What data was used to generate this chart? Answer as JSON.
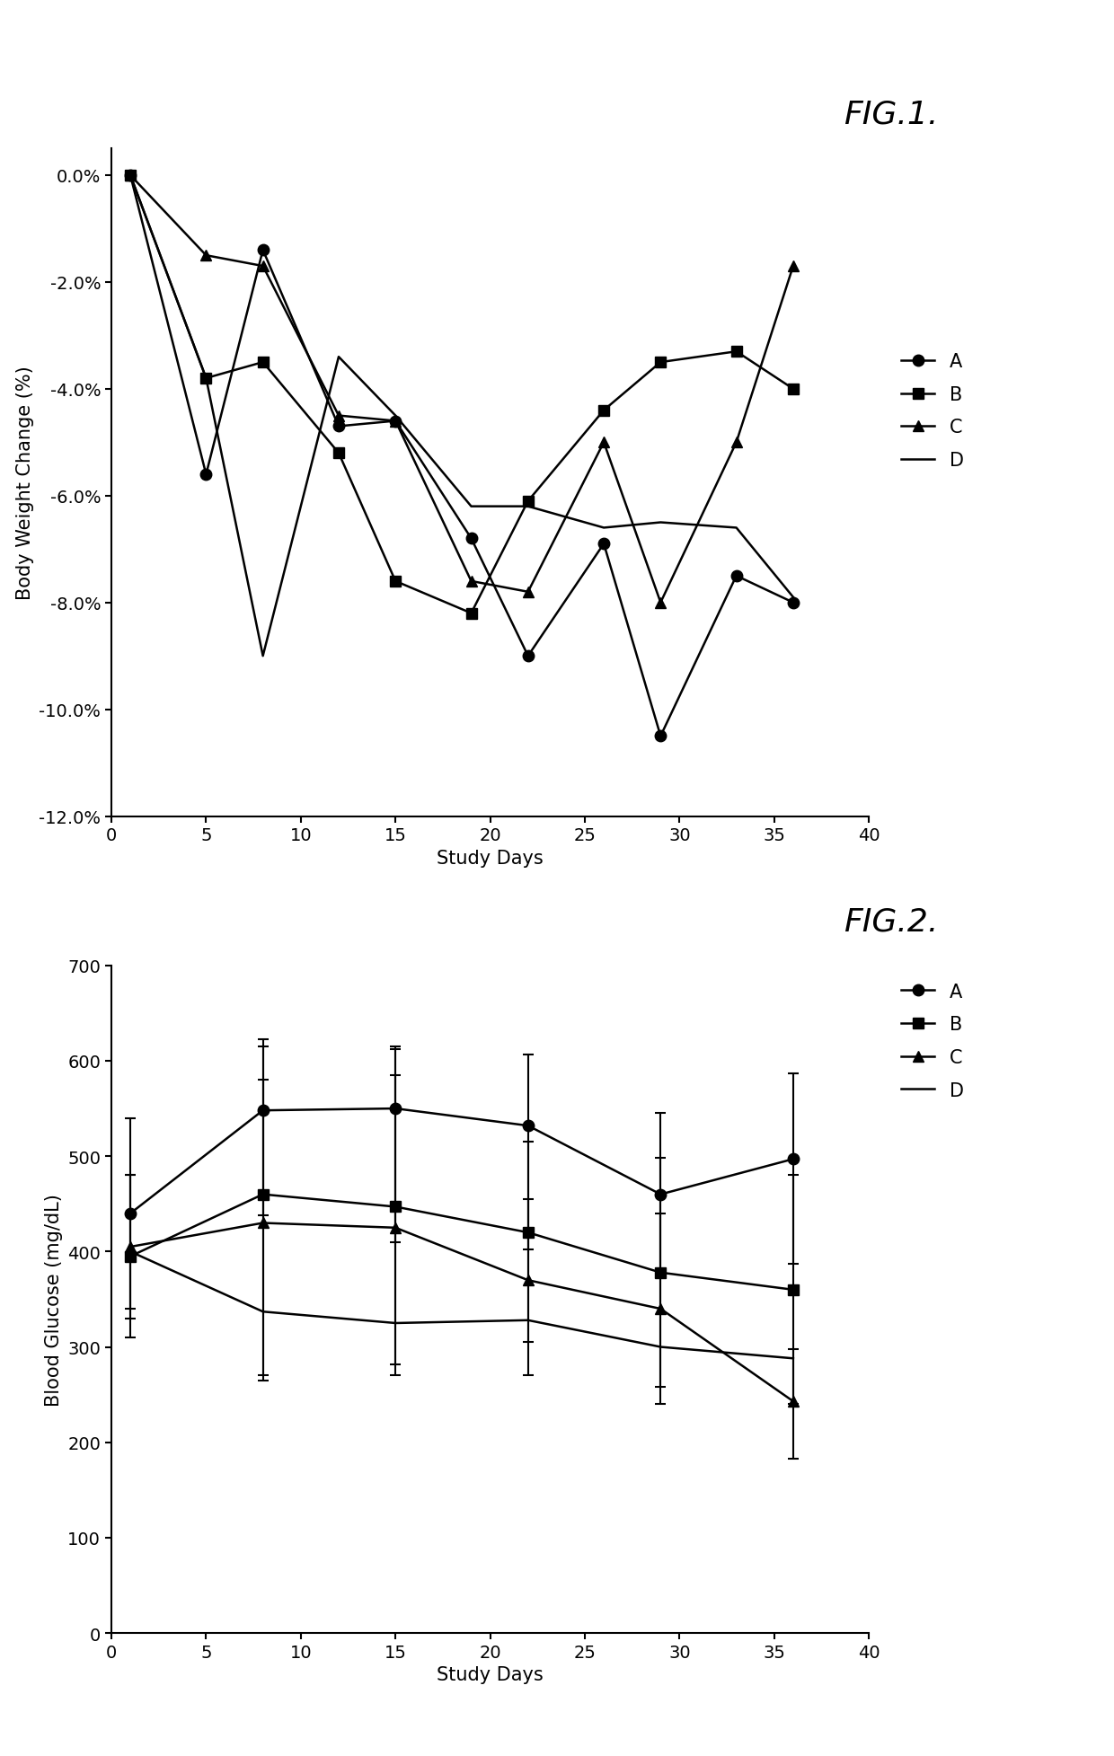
{
  "fig1": {
    "title": "FIG.1.",
    "xlabel": "Study Days",
    "ylabel": "Body Weight Change (%)",
    "xlim": [
      0,
      40
    ],
    "ylim": [
      -0.12,
      0.005
    ],
    "yticks": [
      0.0,
      -0.02,
      -0.04,
      -0.06,
      -0.08,
      -0.1,
      -0.12
    ],
    "xticks": [
      0,
      5,
      10,
      15,
      20,
      25,
      30,
      35,
      40
    ],
    "series": {
      "A": {
        "x": [
          1,
          5,
          8,
          12,
          15,
          19,
          22,
          26,
          29,
          33,
          36
        ],
        "y": [
          0.0,
          -0.056,
          -0.014,
          -0.047,
          -0.046,
          -0.068,
          -0.09,
          -0.069,
          -0.105,
          -0.075,
          -0.08
        ],
        "marker": "o",
        "label": "A"
      },
      "B": {
        "x": [
          1,
          5,
          8,
          12,
          15,
          19,
          22,
          26,
          29,
          33,
          36
        ],
        "y": [
          0.0,
          -0.038,
          -0.035,
          -0.052,
          -0.076,
          -0.082,
          -0.061,
          -0.044,
          -0.035,
          -0.033,
          -0.04
        ],
        "marker": "s",
        "label": "B"
      },
      "C": {
        "x": [
          1,
          5,
          8,
          12,
          15,
          19,
          22,
          26,
          29,
          33,
          36
        ],
        "y": [
          0.0,
          -0.015,
          -0.017,
          -0.045,
          -0.046,
          -0.076,
          -0.078,
          -0.05,
          -0.08,
          -0.05,
          -0.017
        ],
        "marker": "^",
        "label": "C"
      },
      "D": {
        "x": [
          1,
          5,
          8,
          12,
          15,
          19,
          22,
          26,
          29,
          33,
          36
        ],
        "y": [
          0.0,
          -0.038,
          -0.09,
          -0.034,
          -0.045,
          -0.062,
          -0.062,
          -0.066,
          -0.065,
          -0.066,
          -0.079
        ],
        "marker": null,
        "label": "D"
      }
    }
  },
  "fig2": {
    "title": "FIG.2.",
    "xlabel": "Study Days",
    "ylabel": "Blood Glucose (mg/dL)",
    "xlim": [
      0,
      40
    ],
    "ylim": [
      0,
      700
    ],
    "yticks": [
      0,
      100,
      200,
      300,
      400,
      500,
      600,
      700
    ],
    "xticks": [
      0,
      5,
      10,
      15,
      20,
      25,
      30,
      35,
      40
    ],
    "series": {
      "A": {
        "x": [
          1,
          8,
          15,
          22,
          29,
          36
        ],
        "y": [
          440,
          548,
          550,
          532,
          460,
          497
        ],
        "yerr_low": [
          100,
          110,
          140,
          130,
          85,
          110
        ],
        "yerr_high": [
          100,
          75,
          65,
          75,
          85,
          90
        ],
        "marker": "o",
        "label": "A"
      },
      "B": {
        "x": [
          1,
          8,
          15,
          22,
          29,
          36
        ],
        "y": [
          395,
          460,
          447,
          420,
          378,
          360
        ],
        "yerr_low": [
          85,
          190,
          165,
          115,
          120,
          120
        ],
        "yerr_high": [
          85,
          155,
          165,
          95,
          120,
          120
        ],
        "marker": "s",
        "label": "B"
      },
      "C": {
        "x": [
          1,
          8,
          15,
          22,
          29,
          36
        ],
        "y": [
          405,
          430,
          425,
          370,
          340,
          243
        ],
        "yerr_low": [
          75,
          165,
          155,
          100,
          100,
          60
        ],
        "yerr_high": [
          75,
          150,
          160,
          85,
          100,
          55
        ],
        "marker": "^",
        "label": "C"
      },
      "D": {
        "x": [
          1,
          8,
          15,
          22,
          29,
          36
        ],
        "y": [
          400,
          337,
          325,
          328,
          300,
          288
        ],
        "yerr_low": [
          65,
          45,
          35,
          50,
          55,
          45
        ],
        "yerr_high": [
          65,
          45,
          35,
          50,
          55,
          45
        ],
        "marker": null,
        "label": "D"
      }
    }
  },
  "line_color": "#000000",
  "marker_size": 9,
  "line_width": 1.8,
  "font_family": "DejaVu Sans",
  "title_fontsize": 26,
  "label_fontsize": 15,
  "tick_fontsize": 14,
  "legend_fontsize": 15
}
